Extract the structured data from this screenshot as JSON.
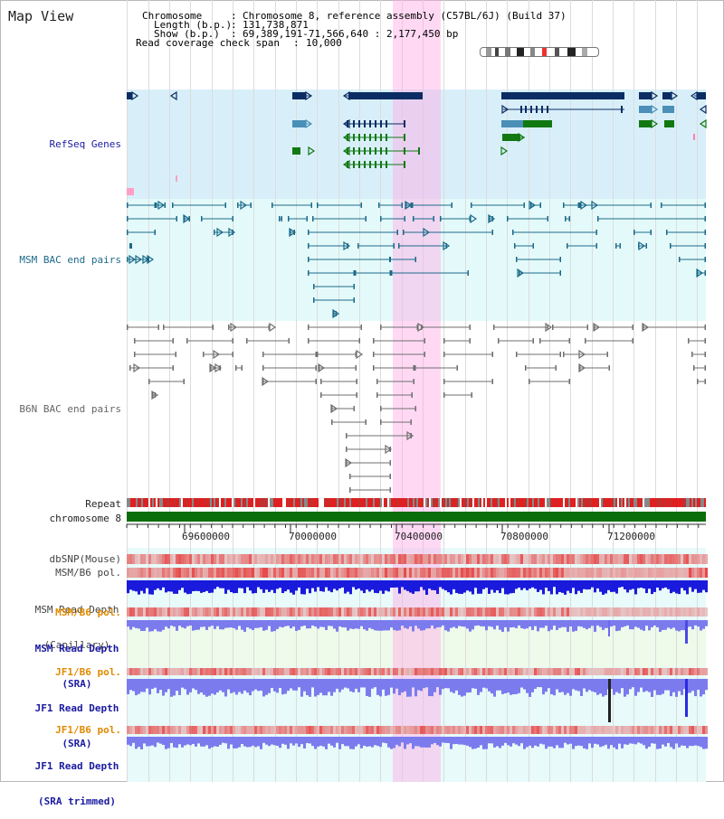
{
  "title": "Map View",
  "info": {
    "chromosome_label": "Chromosome",
    "chromosome_value": "Chromosome 8, reference assembly (C57BL/6J) (Build 37)",
    "length_label": "Length (b.p.)",
    "length_value": "131,738,871",
    "show_label": "Show (b.p.)",
    "show_value": "69,389,191-71,566,640 : 2,177,450 bp",
    "coverage_label": "Read coverage check span",
    "coverage_value": "10,000"
  },
  "tracks": {
    "refseq": "RefSeq Genes",
    "msm_bac": "MSM BAC end pairs",
    "b6n_bac": "B6N BAC end pairs",
    "repeat": "Repeat",
    "chromosome": "chromosome 8",
    "dbsnp": "dbSNP(Mouse)",
    "msm_b6_pol": "MSM/B6 pol.",
    "msm_depth_cap_1": "MSM Read Depth",
    "msm_depth_cap_2": "(Capillary)",
    "msm_b6_pol_2": "MSM/B6 pol.",
    "msm_depth_sra_1": "MSM Read Depth",
    "msm_depth_sra_2": "(SRA)",
    "jf1_b6_pol": "JF1/B6 pol.",
    "jf1_depth_sra_1": "JF1 Read Depth",
    "jf1_depth_sra_2": "(SRA)",
    "jf1_b6_pol_2": "JF1/B6 pol.",
    "jf1_depth_trim_1": "JF1 Read Depth",
    "jf1_depth_trim_2": "(SRA trimmed)"
  },
  "axis": {
    "ticks": [
      "69600000",
      "70000000",
      "70400000",
      "70800000",
      "71200000"
    ]
  },
  "colors": {
    "refseq_bg": "#d8effa",
    "bac_bg": "#e4fafa",
    "highlight": "#ffaee6",
    "gene_dark": "#0b2d63",
    "gene_mid": "#4a8fb8",
    "gene_green": "#127812",
    "msm_bac": "#1c6a8a",
    "b6n_bac": "#6f6f6f",
    "chrom_bar": "#0a6e0a",
    "depth_blue": "#1a1adc",
    "depth_light": "#7b7bee",
    "pol_red": "#e03232",
    "orange_label": "#e08a00",
    "navy_label": "#1a1aa0"
  }
}
